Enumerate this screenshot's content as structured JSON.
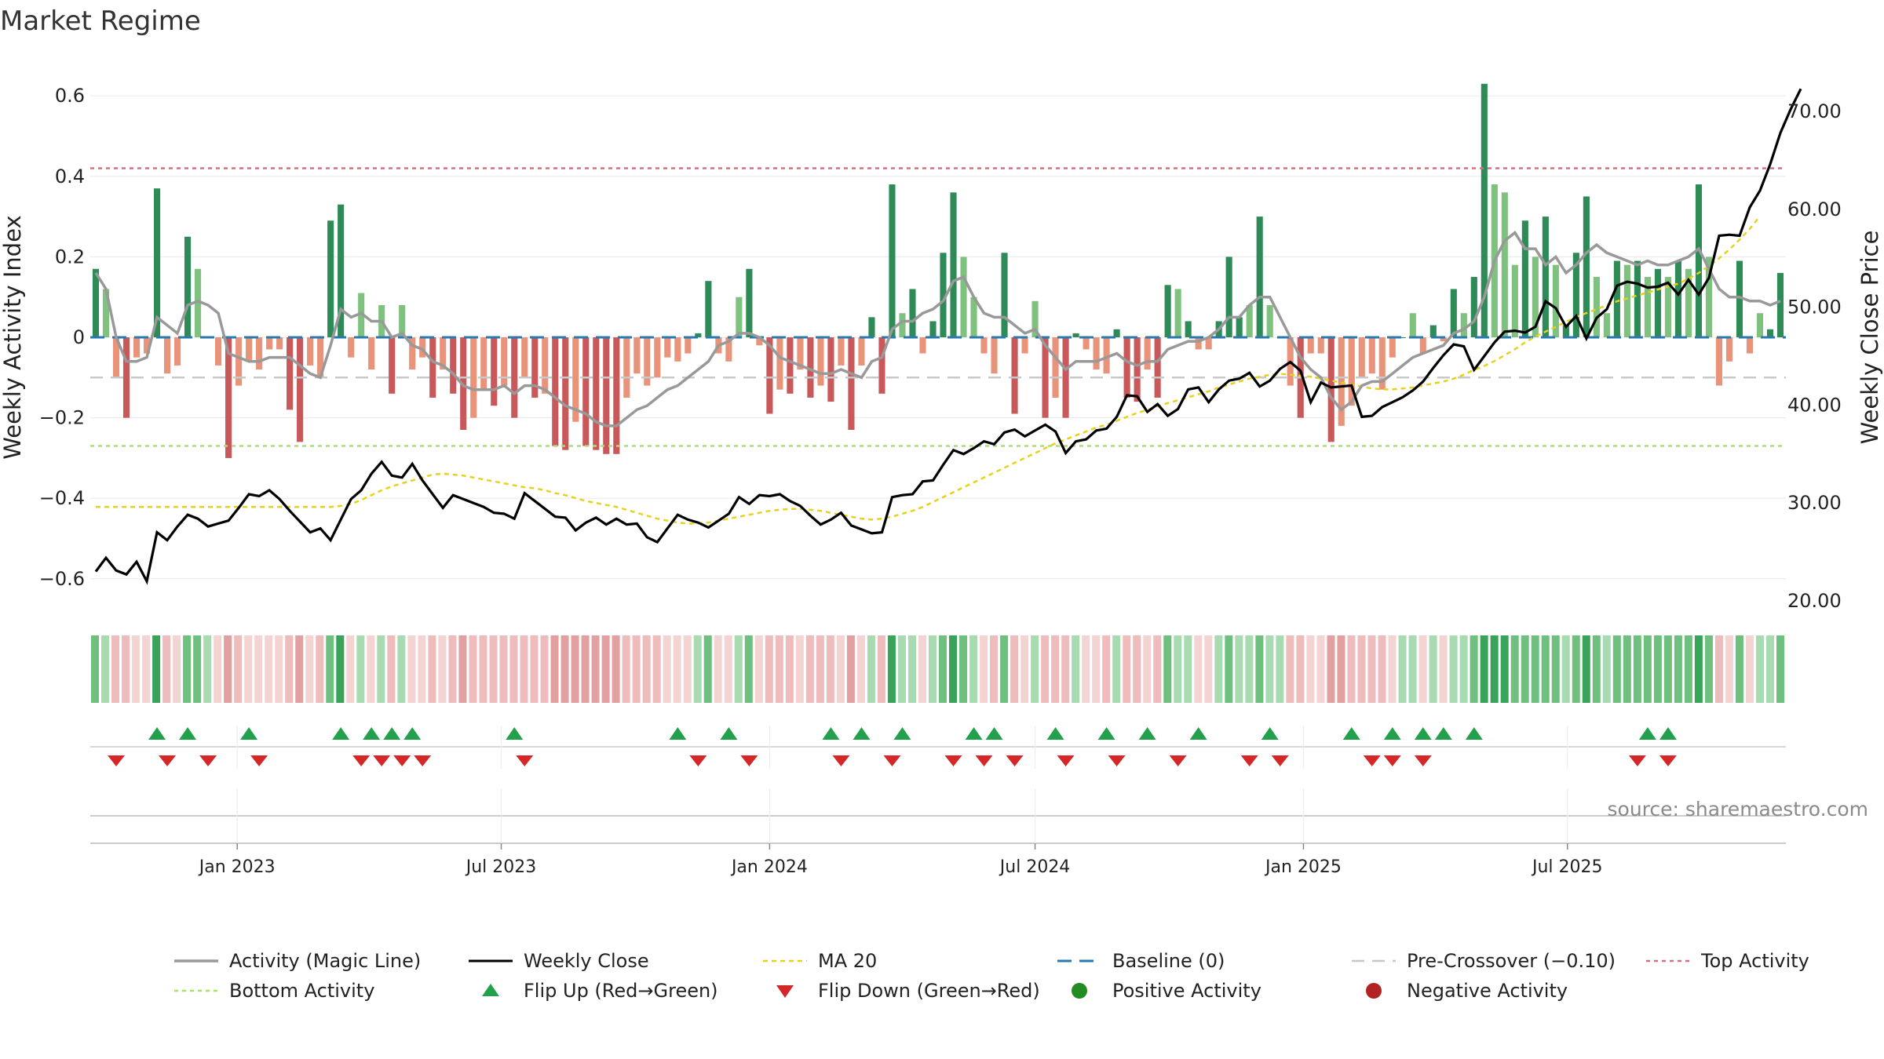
{
  "title": "Market Regime",
  "source": "source: sharemaestro.com",
  "colors": {
    "green_strong": "#2e8b57",
    "green_light": "#7fc17f",
    "red_strong": "#c9585a",
    "red_light": "#e8937a",
    "activity_line": "#999999",
    "close_line": "#000000",
    "ma20": "#e6d21e",
    "baseline": "#2a7ab0",
    "pre_crossover": "#c8c8c8",
    "top_activity": "#e06a7a",
    "bottom_activity": "#a8e070",
    "flip_up": "#22a04b",
    "flip_down": "#d62728",
    "positive_dot": "#228b22",
    "negative_dot": "#b22222"
  },
  "chart_data": {
    "type": "bar",
    "title": "Market Regime",
    "x_axis": {
      "type": "date",
      "range": [
        "2022-09-26",
        "2025-09-22"
      ],
      "tick_labels": [
        "Jan 2023",
        "Jul 2023",
        "Jan 2024",
        "Jul 2024",
        "Jan 2025",
        "Jul 2025"
      ],
      "tick_dates": [
        "2023-01-01",
        "2023-07-01",
        "2024-01-01",
        "2024-07-01",
        "2025-01-01",
        "2025-07-01"
      ]
    },
    "y_left": {
      "label": "Weekly Activity Index",
      "range": [
        -0.68,
        0.68
      ],
      "tick_labels": [
        "−0.6",
        "−0.4",
        "−0.2",
        "0",
        "0.2",
        "0.4",
        "0.6"
      ],
      "tick_values": [
        -0.6,
        -0.4,
        -0.2,
        0,
        0.2,
        0.4,
        0.6
      ]
    },
    "y_right": {
      "label": "Weekly Close Price",
      "range": [
        20,
        72.5
      ],
      "tick_labels": [
        "20.00",
        "30.00",
        "40.00",
        "50.00",
        "60.00",
        "70.00"
      ],
      "tick_values": [
        20,
        30,
        40,
        50,
        60,
        70
      ]
    },
    "levels": {
      "top_activity": 0.42,
      "bottom_activity": -0.27,
      "pre_crossover": -0.1,
      "baseline": 0
    },
    "grid": true,
    "legend_position": "bottom",
    "weeks_start": "2022-09-26",
    "activity": [
      0.17,
      0.12,
      -0.1,
      -0.2,
      -0.05,
      -0.04,
      0.37,
      -0.09,
      -0.07,
      0.25,
      0.17,
      0.0,
      -0.07,
      -0.3,
      -0.12,
      -0.06,
      -0.08,
      -0.03,
      -0.03,
      -0.18,
      -0.26,
      -0.07,
      -0.1,
      0.29,
      0.33,
      -0.05,
      0.11,
      -0.08,
      0.08,
      -0.14,
      0.08,
      -0.08,
      -0.05,
      -0.15,
      -0.08,
      -0.14,
      -0.23,
      -0.2,
      -0.13,
      -0.17,
      -0.12,
      -0.2,
      -0.1,
      -0.15,
      -0.14,
      -0.27,
      -0.28,
      -0.21,
      -0.27,
      -0.28,
      -0.29,
      -0.29,
      -0.15,
      -0.09,
      -0.12,
      -0.1,
      -0.05,
      -0.06,
      -0.04,
      0.01,
      0.14,
      -0.04,
      -0.06,
      0.1,
      0.17,
      -0.02,
      -0.19,
      -0.13,
      -0.14,
      -0.08,
      -0.15,
      -0.12,
      -0.16,
      -0.07,
      -0.23,
      -0.07,
      0.05,
      -0.14,
      0.38,
      0.06,
      0.12,
      -0.04,
      0.04,
      0.21,
      0.36,
      0.2,
      0.1,
      -0.04,
      -0.09,
      0.21,
      -0.19,
      -0.04,
      0.09,
      -0.2,
      -0.15,
      -0.2,
      0.01,
      -0.03,
      -0.08,
      -0.09,
      0.02,
      -0.15,
      -0.16,
      -0.08,
      -0.15,
      0.13,
      0.12,
      0.04,
      -0.03,
      -0.03,
      0.04,
      0.2,
      0.05,
      0.08,
      0.3,
      0.08,
      0.0,
      -0.12,
      -0.2,
      -0.04,
      -0.04,
      -0.26,
      -0.22,
      -0.17,
      -0.1,
      -0.09,
      -0.13,
      -0.05,
      0.0,
      0.06,
      -0.04,
      0.03,
      -0.01,
      0.12,
      0.06,
      0.15,
      0.63,
      0.38,
      0.36,
      0.18,
      0.29,
      0.2,
      0.3,
      0.18,
      0.03,
      0.21,
      0.35,
      0.15,
      0.06,
      0.19,
      0.18,
      0.19,
      0.15,
      0.17,
      0.15,
      0.19,
      0.17,
      0.38,
      0.2,
      -0.12,
      -0.06,
      0.19,
      -0.04,
      0.06,
      0.02,
      0.16
    ],
    "activity_line": [
      0.16,
      0.12,
      0.0,
      -0.06,
      -0.06,
      -0.05,
      0.05,
      0.03,
      0.01,
      0.08,
      0.09,
      0.08,
      0.06,
      -0.04,
      -0.05,
      -0.06,
      -0.06,
      -0.05,
      -0.05,
      -0.05,
      -0.07,
      -0.09,
      -0.1,
      -0.02,
      0.07,
      0.05,
      0.06,
      0.04,
      0.04,
      0.0,
      0.01,
      -0.02,
      -0.03,
      -0.06,
      -0.07,
      -0.09,
      -0.12,
      -0.13,
      -0.13,
      -0.13,
      -0.12,
      -0.14,
      -0.12,
      -0.12,
      -0.13,
      -0.15,
      -0.17,
      -0.18,
      -0.19,
      -0.21,
      -0.22,
      -0.22,
      -0.2,
      -0.18,
      -0.17,
      -0.15,
      -0.13,
      -0.12,
      -0.1,
      -0.08,
      -0.06,
      -0.02,
      -0.01,
      0.01,
      0.01,
      0.0,
      -0.02,
      -0.05,
      -0.06,
      -0.07,
      -0.08,
      -0.09,
      -0.09,
      -0.08,
      -0.09,
      -0.1,
      -0.06,
      -0.05,
      0.02,
      0.04,
      0.04,
      0.06,
      0.07,
      0.09,
      0.14,
      0.15,
      0.1,
      0.06,
      0.05,
      0.05,
      0.03,
      0.01,
      0.02,
      -0.02,
      -0.05,
      -0.08,
      -0.06,
      -0.06,
      -0.06,
      -0.05,
      -0.04,
      -0.06,
      -0.07,
      -0.06,
      -0.06,
      -0.03,
      -0.02,
      -0.01,
      -0.01,
      0.0,
      0.02,
      0.05,
      0.05,
      0.08,
      0.1,
      0.1,
      0.05,
      0.0,
      -0.05,
      -0.08,
      -0.1,
      -0.15,
      -0.18,
      -0.16,
      -0.12,
      -0.11,
      -0.11,
      -0.09,
      -0.07,
      -0.05,
      -0.04,
      -0.03,
      -0.02,
      0.01,
      0.02,
      0.04,
      0.1,
      0.19,
      0.24,
      0.26,
      0.22,
      0.22,
      0.18,
      0.2,
      0.16,
      0.18,
      0.21,
      0.23,
      0.21,
      0.2,
      0.19,
      0.18,
      0.19,
      0.18,
      0.18,
      0.19,
      0.2,
      0.22,
      0.17,
      0.12,
      0.1,
      0.1,
      0.09,
      0.09,
      0.08,
      0.09
    ],
    "weekly_close": [
      23.0,
      24.4,
      23.1,
      22.7,
      24.0,
      22.0,
      27.0,
      26.2,
      27.6,
      28.8,
      28.4,
      27.6,
      27.9,
      28.2,
      29.5,
      30.9,
      30.7,
      31.3,
      30.4,
      29.2,
      28.1,
      27.0,
      27.4,
      26.2,
      28.3,
      30.4,
      31.3,
      33.0,
      34.2,
      32.8,
      32.6,
      34.0,
      32.3,
      30.9,
      29.5,
      30.8,
      30.4,
      30.0,
      29.6,
      29.0,
      28.9,
      28.4,
      31.0,
      30.2,
      29.4,
      28.6,
      28.5,
      27.2,
      28.0,
      28.5,
      27.8,
      28.4,
      27.8,
      27.9,
      26.5,
      26.0,
      27.4,
      28.8,
      28.3,
      28.0,
      27.5,
      28.2,
      28.9,
      30.6,
      29.9,
      30.8,
      30.7,
      30.9,
      30.2,
      29.7,
      28.7,
      27.8,
      28.3,
      29.0,
      27.7,
      27.3,
      26.9,
      27.0,
      30.6,
      30.8,
      30.9,
      32.2,
      32.3,
      33.9,
      35.4,
      35.0,
      35.6,
      36.3,
      36.0,
      37.2,
      37.5,
      36.8,
      37.4,
      38.0,
      37.3,
      35.1,
      36.3,
      36.5,
      37.4,
      37.6,
      38.8,
      41.0,
      40.9,
      39.3,
      40.1,
      38.9,
      39.6,
      41.6,
      41.8,
      40.3,
      41.6,
      42.5,
      42.7,
      43.3,
      41.9,
      42.5,
      43.7,
      44.4,
      43.5,
      40.3,
      42.3,
      41.8,
      41.9,
      42.0,
      38.8,
      38.9,
      39.8,
      40.3,
      40.8,
      41.5,
      42.4,
      43.8,
      45.1,
      46.2,
      46.0,
      43.6,
      45.0,
      46.4,
      47.5,
      47.6,
      47.4,
      48.0,
      50.6,
      49.9,
      48.0,
      49.1,
      46.8,
      48.9,
      49.8,
      52.2,
      52.6,
      52.4,
      52.0,
      52.1,
      52.5,
      51.3,
      52.8,
      51.3,
      53.0,
      57.3,
      57.4,
      57.3,
      60.2,
      61.9,
      64.6,
      67.8,
      70.2,
      72.3
    ],
    "ma20": [
      29.6,
      29.6,
      29.6,
      29.6,
      29.6,
      29.6,
      29.6,
      29.6,
      29.6,
      29.6,
      29.6,
      29.6,
      29.6,
      29.6,
      29.6,
      29.6,
      29.6,
      29.6,
      29.6,
      29.6,
      29.6,
      29.6,
      29.6,
      29.6,
      29.7,
      29.9,
      30.3,
      30.8,
      31.3,
      31.7,
      32.0,
      32.3,
      32.6,
      32.9,
      33.0,
      32.9,
      32.8,
      32.6,
      32.4,
      32.2,
      32.0,
      31.8,
      31.6,
      31.5,
      31.3,
      31.0,
      30.8,
      30.5,
      30.2,
      30.0,
      29.8,
      29.6,
      29.3,
      29.0,
      28.7,
      28.4,
      28.2,
      28.0,
      27.9,
      27.9,
      28.0,
      28.2,
      28.4,
      28.6,
      28.8,
      29.0,
      29.2,
      29.3,
      29.4,
      29.4,
      29.3,
      29.2,
      29.0,
      28.8,
      28.6,
      28.4,
      28.3,
      28.4,
      28.6,
      28.9,
      29.2,
      29.6,
      30.1,
      30.6,
      31.1,
      31.6,
      32.1,
      32.6,
      33.1,
      33.6,
      34.1,
      34.6,
      35.1,
      35.6,
      36.1,
      36.5,
      36.9,
      37.3,
      37.7,
      38.0,
      38.4,
      38.8,
      39.2,
      39.5,
      39.9,
      40.2,
      40.5,
      40.8,
      41.1,
      41.4,
      41.8,
      42.1,
      42.4,
      42.7,
      42.9,
      43.1,
      43.2,
      43.1,
      43.0,
      42.9,
      42.7,
      42.5,
      42.3,
      42.1,
      41.9,
      41.7,
      41.6,
      41.6,
      41.7,
      41.8,
      42.0,
      42.2,
      42.4,
      42.7,
      43.1,
      43.6,
      44.0,
      44.5,
      45.1,
      45.7,
      46.4,
      47.0,
      47.5,
      48.0,
      48.5,
      49.0,
      49.4,
      49.8,
      50.2,
      50.6,
      50.9,
      51.2,
      51.5,
      51.8,
      52.1,
      52.4,
      52.9,
      53.5,
      54.2,
      55.0,
      55.9,
      56.9,
      58.0,
      59.3
    ],
    "flip_up_weeks": [
      6,
      9,
      15,
      24,
      27,
      29,
      31,
      41,
      57,
      62,
      72,
      75,
      79,
      86,
      88,
      94,
      99,
      103,
      108,
      115,
      123,
      127,
      130,
      132,
      135,
      152,
      154
    ],
    "flip_down_weeks": [
      2,
      7,
      11,
      16,
      26,
      28,
      30,
      32,
      42,
      59,
      64,
      73,
      78,
      84,
      87,
      90,
      95,
      100,
      106,
      113,
      116,
      125,
      127,
      130,
      151,
      154
    ],
    "strip_regime": "color of each weekly strip cell follows the sign and strength of the activity value"
  },
  "legend": [
    {
      "key": "activity",
      "label": "Activity (Magic Line)"
    },
    {
      "key": "close",
      "label": "Weekly Close"
    },
    {
      "key": "ma20",
      "label": "MA 20"
    },
    {
      "key": "baseline",
      "label": "Baseline (0)"
    },
    {
      "key": "pre",
      "label": "Pre-Crossover (−0.10)"
    },
    {
      "key": "top",
      "label": "Top Activity"
    },
    {
      "key": "bottom",
      "label": "Bottom Activity"
    },
    {
      "key": "flipup",
      "label": "Flip Up (Red→Green)"
    },
    {
      "key": "flipdown",
      "label": "Flip Down (Green→Red)"
    },
    {
      "key": "pos",
      "label": "Positive Activity"
    },
    {
      "key": "neg",
      "label": "Negative Activity"
    }
  ]
}
